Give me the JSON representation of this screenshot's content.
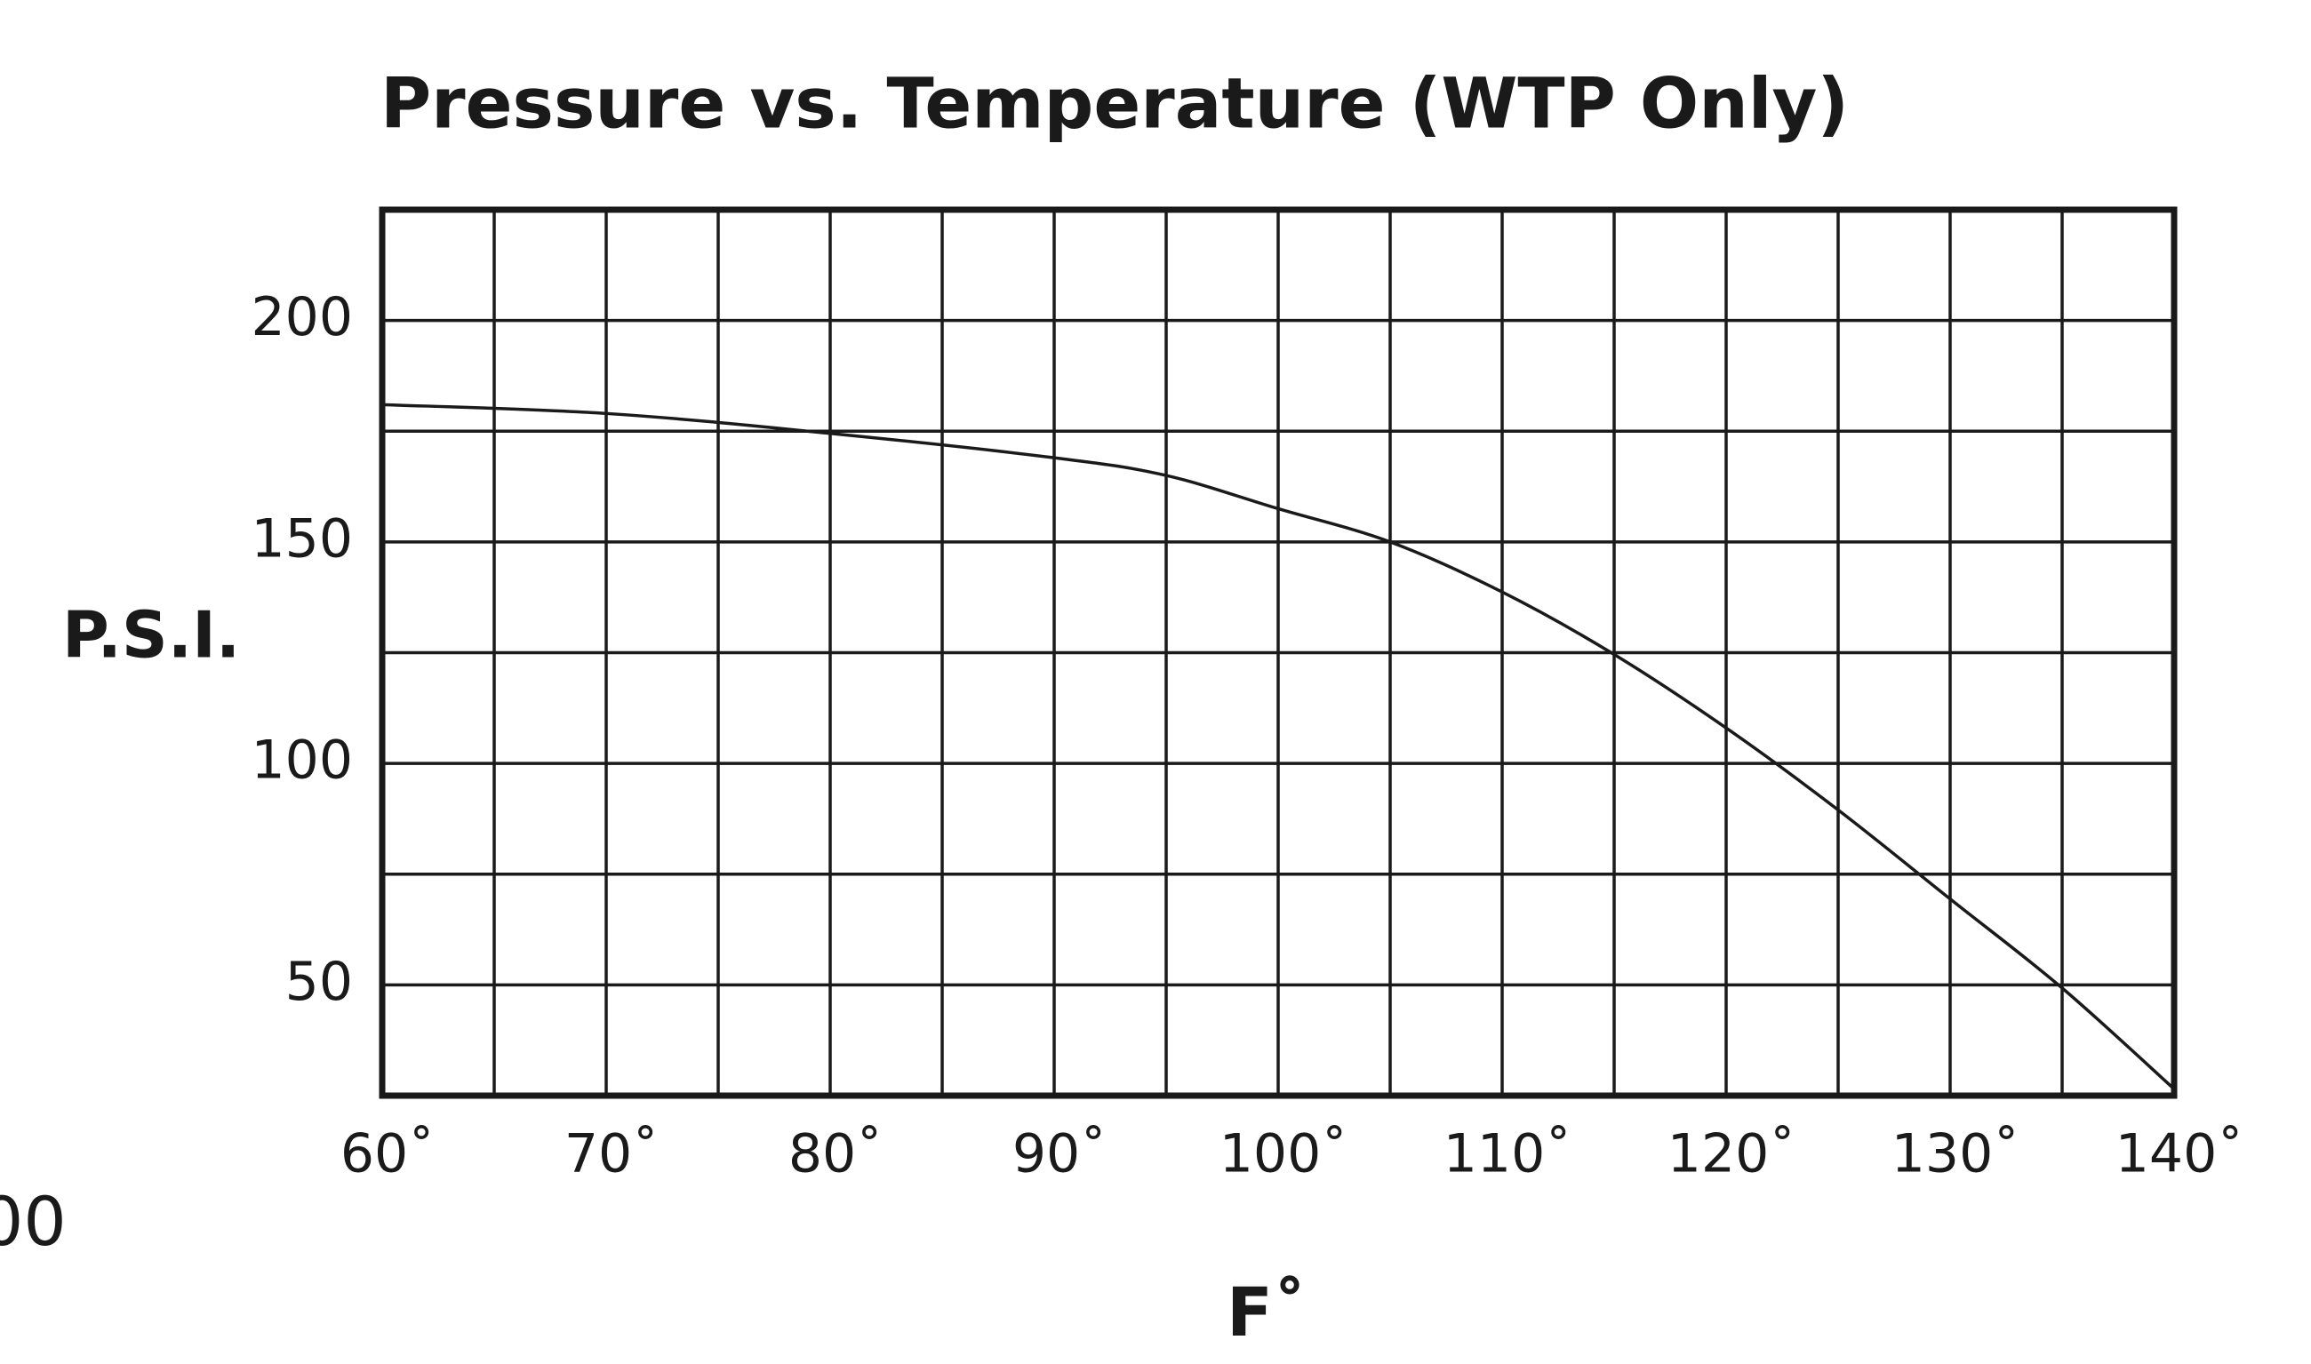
{
  "chart_data": {
    "type": "line",
    "title": "Pressure vs. Temperature (WTP Only)",
    "x_label": "F˚",
    "y_label": "P.S.I.",
    "annotation": "00",
    "xlim": [
      60,
      140
    ],
    "ylim": [
      25,
      225
    ],
    "xticks": [
      {
        "value": 60,
        "label": "60˚"
      },
      {
        "value": 70,
        "label": "70˚"
      },
      {
        "value": 80,
        "label": "80˚"
      },
      {
        "value": 90,
        "label": "90˚"
      },
      {
        "value": 100,
        "label": "100˚"
      },
      {
        "value": 110,
        "label": "110˚"
      },
      {
        "value": 120,
        "label": "120˚"
      },
      {
        "value": 130,
        "label": "130˚"
      },
      {
        "value": 140,
        "label": "140˚"
      }
    ],
    "minor_xticks": [
      65,
      75,
      85,
      95,
      105,
      115,
      125,
      135
    ],
    "yticks": [
      50,
      100,
      150,
      200
    ],
    "minor_yticks": [
      75,
      125,
      175
    ],
    "grid": true,
    "series": [
      {
        "color": "#1a1a1a",
        "x": [
          60,
          70,
          80,
          90,
          95,
          100,
          105,
          110,
          115,
          120,
          125,
          130,
          135,
          140
        ],
        "values": [
          181,
          179,
          174.5,
          169,
          165,
          157.5,
          150,
          138.7,
          124.6,
          108,
          89.5,
          69.4,
          49.3,
          26.5
        ]
      }
    ]
  }
}
